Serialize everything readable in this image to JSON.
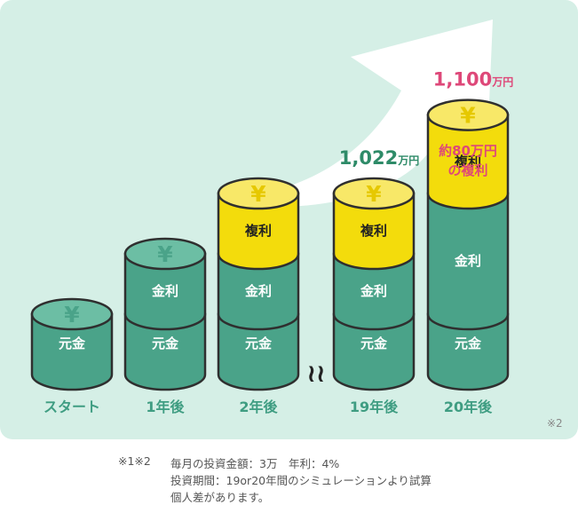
{
  "chart_data": {
    "type": "bar",
    "stacked": true,
    "categories": [
      "スタート",
      "1年後",
      "2年後",
      "19年後",
      "20年後"
    ],
    "series": [
      {
        "name": "元金",
        "values": [
          1,
          1,
          1,
          1,
          1
        ]
      },
      {
        "name": "金利",
        "values": [
          0,
          1,
          1,
          1,
          2
        ]
      },
      {
        "name": "複利",
        "values": [
          0,
          0,
          1,
          1,
          1.3
        ]
      }
    ],
    "value_labels": [
      {
        "category": "19年後",
        "number": "1,022",
        "unit": "万円"
      },
      {
        "category": "20年後",
        "number": "1,100",
        "unit": "万円"
      }
    ],
    "annotation": "約80万円\nの複利",
    "coin_symbol": "¥",
    "break_symbol": "≀≀",
    "colors": {
      "background": "#d5efe6",
      "principal": "#4aa389",
      "principal_top": "#6cbea4",
      "interest": "#4aa389",
      "compound": "#f3dc0c",
      "compound_top": "#f8e868",
      "coin_text": "#e6c800",
      "stroke": "#2f2f2f",
      "category_text": "#3f9d82",
      "value_19": "#2e8b68",
      "value_20": "#de4879",
      "arrow": "#ffffff"
    }
  },
  "corner_note": "※2",
  "notes": {
    "prefix": "※1※2",
    "line1": "毎月の投資金額：3万　年利：4%",
    "line2": "投資期間：19or20年間のシミュレーションより試算",
    "line3": "個人差があります。"
  }
}
